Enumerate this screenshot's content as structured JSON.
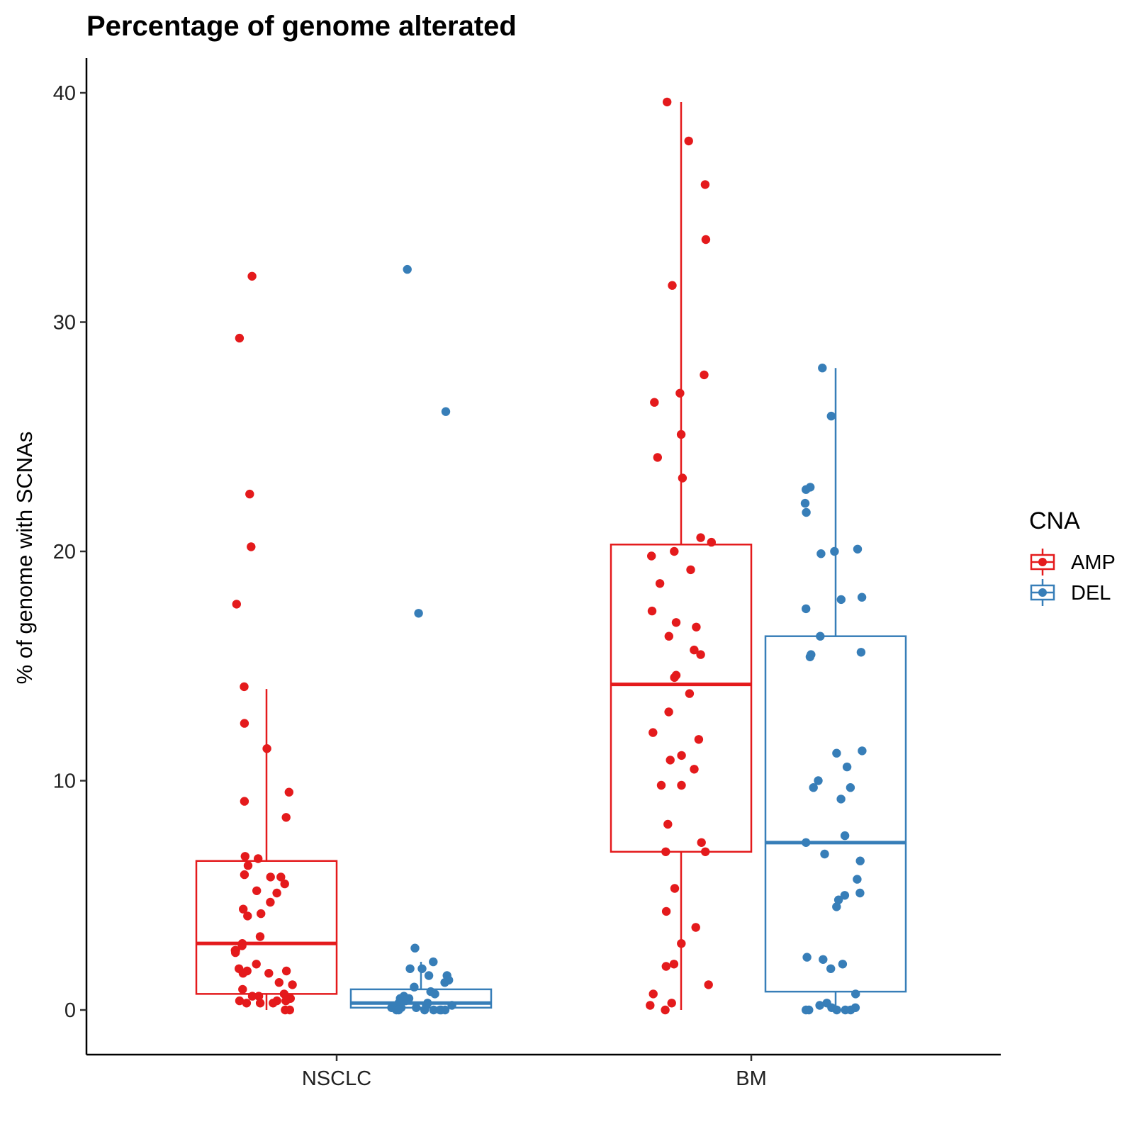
{
  "chart_data": {
    "type": "box",
    "title": "Percentage of genome alterated",
    "xlabel": "",
    "ylabel": "% of genome with SCNAs",
    "ylim": [
      -2,
      41.6
    ],
    "yticks": [
      0,
      10,
      20,
      30,
      40
    ],
    "categories": [
      "NSCLC",
      "BM"
    ],
    "legend": {
      "title": "CNA",
      "position": "right"
    },
    "series": [
      {
        "name": "AMP",
        "color": "#E41A1C",
        "boxes": [
          {
            "category": "NSCLC",
            "whisker_low": 0.0,
            "q1": 0.7,
            "median": 2.9,
            "q3": 6.5,
            "whisker_high": 14.0,
            "points": [
              32.0,
              29.3,
              22.5,
              20.2,
              17.7,
              14.1,
              12.5,
              11.4,
              9.5,
              9.1,
              8.4,
              6.7,
              6.6,
              6.3,
              5.9,
              5.8,
              5.8,
              5.5,
              5.2,
              5.1,
              4.7,
              4.4,
              4.2,
              4.1,
              3.2,
              2.9,
              2.8,
              2.6,
              2.6,
              2.5,
              2.0,
              1.8,
              1.7,
              1.7,
              1.6,
              1.6,
              1.2,
              1.1,
              0.9,
              0.7,
              0.6,
              0.6,
              0.5,
              0.4,
              0.4,
              0.4,
              0.3,
              0.3,
              0.3,
              0.0,
              0.0
            ]
          },
          {
            "category": "BM",
            "whisker_low": 0.0,
            "q1": 6.9,
            "median": 14.2,
            "q3": 20.3,
            "whisker_high": 39.6,
            "points": [
              39.6,
              37.9,
              36.0,
              33.6,
              31.6,
              27.7,
              26.9,
              26.5,
              25.1,
              24.1,
              23.2,
              20.6,
              20.4,
              20.0,
              19.8,
              19.2,
              18.6,
              17.4,
              16.9,
              16.7,
              16.3,
              15.7,
              15.5,
              14.6,
              14.5,
              13.8,
              13.0,
              12.1,
              11.8,
              11.1,
              10.9,
              10.5,
              9.8,
              9.8,
              8.1,
              7.3,
              6.9,
              6.9,
              5.3,
              4.3,
              3.6,
              2.9,
              2.0,
              1.9,
              1.1,
              0.7,
              0.3,
              0.2,
              0.0
            ]
          }
        ]
      },
      {
        "name": "DEL",
        "color": "#377EB8",
        "boxes": [
          {
            "category": "NSCLC",
            "whisker_low": 0.0,
            "q1": 0.1,
            "median": 0.3,
            "q3": 0.9,
            "whisker_high": 2.1,
            "points": [
              32.3,
              26.1,
              17.3,
              2.7,
              2.1,
              1.8,
              1.8,
              1.5,
              1.5,
              1.3,
              1.2,
              1.0,
              0.8,
              0.7,
              0.6,
              0.5,
              0.5,
              0.4,
              0.3,
              0.3,
              0.2,
              0.2,
              0.1,
              0.1,
              0.1,
              0.0,
              0.0,
              0.0,
              0.0,
              0.0,
              0.0,
              0.0
            ]
          },
          {
            "category": "BM",
            "whisker_low": 0.0,
            "q1": 0.8,
            "median": 7.3,
            "q3": 16.3,
            "whisker_high": 28.0,
            "points": [
              28.0,
              25.9,
              22.8,
              22.7,
              22.1,
              21.7,
              20.1,
              20.0,
              19.9,
              18.0,
              17.9,
              17.5,
              16.3,
              15.6,
              15.5,
              15.4,
              11.3,
              11.2,
              10.6,
              10.0,
              9.7,
              9.7,
              9.2,
              7.6,
              7.3,
              6.8,
              6.5,
              5.7,
              5.1,
              5.0,
              4.8,
              4.5,
              2.3,
              2.2,
              2.0,
              1.8,
              0.7,
              0.3,
              0.2,
              0.1,
              0.1,
              0.0,
              0.0,
              0.0,
              0.0,
              0.0
            ]
          }
        ]
      }
    ]
  }
}
